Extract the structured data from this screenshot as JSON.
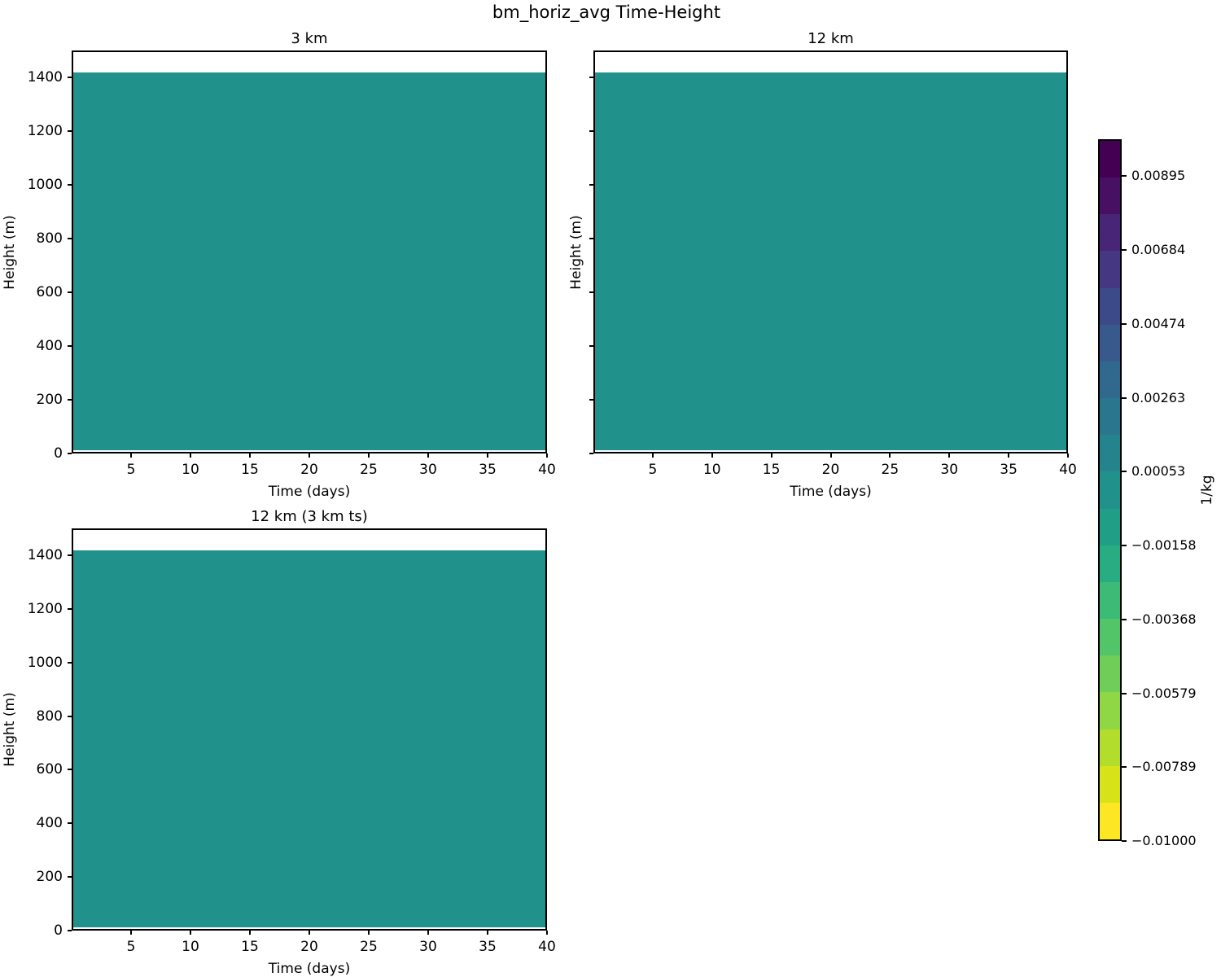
{
  "figure": {
    "title": "bm_horiz_avg Time-Height",
    "background_color": "#ffffff",
    "axis_color": "#000000"
  },
  "chart_data": {
    "type": "heatmap",
    "figure_title": "bm_horiz_avg Time-Height",
    "units_label": "1/kg",
    "panels": [
      {
        "title": "3 km",
        "xlabel": "Time (days)",
        "ylabel": "Height (m)",
        "xlim": [
          0,
          40
        ],
        "ylim": [
          0,
          1500
        ],
        "xticks": [
          5,
          10,
          15,
          20,
          25,
          30,
          35,
          40
        ],
        "yticks": [
          0,
          200,
          400,
          600,
          800,
          1000,
          1200,
          1400
        ],
        "ytick_labels_visible": true,
        "field": {
          "time_range_days": [
            0,
            40
          ],
          "height_range_m": [
            5,
            1425
          ],
          "approx_uniform_value": 0.0,
          "fill_color": "#21918c"
        }
      },
      {
        "title": "12 km",
        "xlabel": "Time (days)",
        "ylabel": "Height (m)",
        "xlim": [
          0,
          40
        ],
        "ylim": [
          0,
          1500
        ],
        "xticks": [
          5,
          10,
          15,
          20,
          25,
          30,
          35,
          40
        ],
        "yticks": [
          0,
          200,
          400,
          600,
          800,
          1000,
          1200,
          1400
        ],
        "ytick_labels_visible": false,
        "field": {
          "time_range_days": [
            0,
            40
          ],
          "height_range_m": [
            5,
            1425
          ],
          "approx_uniform_value": 0.0,
          "fill_color": "#21918c"
        }
      },
      {
        "title": "12 km (3 km ts)",
        "xlabel": "Time (days)",
        "ylabel": "Height (m)",
        "xlim": [
          0,
          40
        ],
        "ylim": [
          0,
          1500
        ],
        "xticks": [
          5,
          10,
          15,
          20,
          25,
          30,
          35,
          40
        ],
        "yticks": [
          0,
          200,
          400,
          600,
          800,
          1000,
          1200,
          1400
        ],
        "ytick_labels_visible": true,
        "field": {
          "time_range_days": [
            0,
            40
          ],
          "height_range_m": [
            5,
            1425
          ],
          "approx_uniform_value": 0.0,
          "fill_color": "#21918c"
        }
      }
    ],
    "colorbar": {
      "label": "1/kg",
      "vmin": -0.01,
      "vmax": 0.01,
      "n_levels": 19,
      "orientation": "vertical",
      "tick_labels": [
        "0.00895",
        "0.00684",
        "0.00474",
        "0.00263",
        "0.00053",
        "−0.00158",
        "−0.00368",
        "−0.00579",
        "−0.00789",
        "−0.01000"
      ],
      "tick_fractions_from_top": [
        0.05263,
        0.15789,
        0.26316,
        0.36842,
        0.47368,
        0.57895,
        0.68421,
        0.78947,
        0.89474,
        1.0
      ],
      "segment_colors_top_to_bottom": [
        "#440154",
        "#471063",
        "#482576",
        "#453781",
        "#3d4a89",
        "#38598c",
        "#30688e",
        "#2a768e",
        "#25838e",
        "#21918c",
        "#219f86",
        "#27ad81",
        "#3bbb75",
        "#52c569",
        "#6ece58",
        "#8fd744",
        "#b2dd2d",
        "#d8e219",
        "#fde725"
      ]
    }
  }
}
